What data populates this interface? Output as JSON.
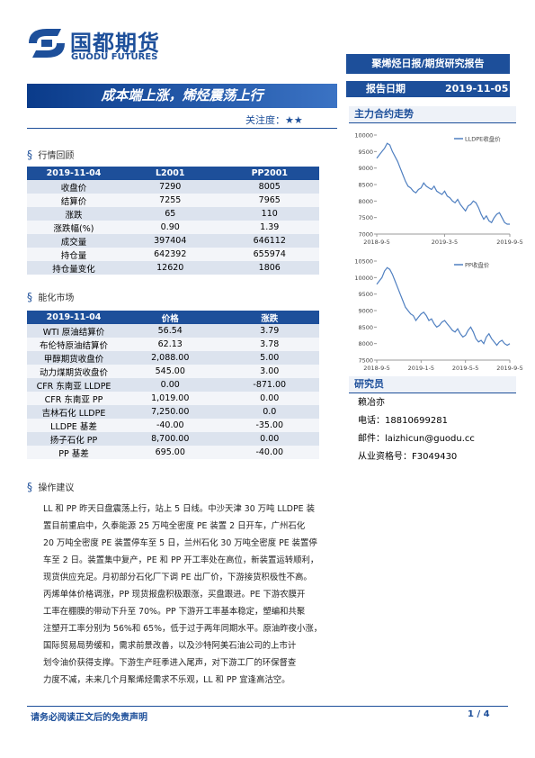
{
  "header": {
    "logo_cn": "国都期货",
    "logo_en": "GUODU FUTURES",
    "banner": "聚烯烃日报/期货研究报告",
    "title": "成本端上涨，烯烃震荡上行",
    "attention_label": "关注度：",
    "attention": "★★",
    "date_label": "报告日期",
    "date": "2019-11-05"
  },
  "market_review": {
    "title": "行情回顾",
    "table": {
      "header": [
        "2019-11-04",
        "L2001",
        "PP2001"
      ],
      "rows": [
        [
          "收盘价",
          "7290",
          "8005"
        ],
        [
          "结算价",
          "7255",
          "7965"
        ],
        [
          "涨跌",
          "65",
          "110"
        ],
        [
          "涨跌幅(%)",
          "0.90",
          "1.39"
        ],
        [
          "成交量",
          "397404",
          "646112"
        ],
        [
          "持仓量",
          "642392",
          "655974"
        ],
        [
          "持仓量变化",
          "12620",
          "1806"
        ]
      ]
    }
  },
  "chem_market": {
    "title": "能化市场",
    "table": {
      "header": [
        "2019-11-04",
        "价格",
        "涨跌"
      ],
      "rows": [
        [
          "WTI 原油结算价",
          "56.54",
          "3.79"
        ],
        [
          "布伦特原油结算价",
          "62.13",
          "3.78"
        ],
        [
          "甲醇期货收盘价",
          "2,088.00",
          "5.00"
        ],
        [
          "动力煤期货收盘价",
          "545.00",
          "3.00"
        ],
        [
          "CFR 东南亚 LLDPE",
          "0.00",
          "-871.00"
        ],
        [
          "CFR 东南亚 PP",
          "1,019.00",
          "0.00"
        ],
        [
          "吉林石化 LLDPE",
          "7,250.00",
          "0.0"
        ],
        [
          "LLDPE 基差",
          "-40.00",
          "-35.00"
        ],
        [
          "扬子石化 PP",
          "8,700.00",
          "0.00"
        ],
        [
          "PP 基差",
          "695.00",
          "-40.00"
        ]
      ]
    }
  },
  "advice": {
    "title": "操作建议",
    "lines": [
      "LL 和 PP 昨天日盘震荡上行，站上 5 日线。中沙天津 30 万吨 LLDPE 装",
      "置目前重启中，久泰能源 25 万吨全密度 PE 装置 2 日开车，广州石化",
      "20 万吨全密度 PE 装置停车至 5 日，兰州石化 30 万吨全密度 PE 装置停",
      "车至 2 日。装置集中复产，PE 和 PP 开工率处在高位，新装置运转顺利，",
      "现货供应充足。月初部分石化厂下调 PE 出厂价，下游接货积极性不高。",
      "丙烯单体价格调涨，PP 现货报盘积极跟涨，买盘跟进。PE 下游农膜开",
      "工率在棚膜的带动下升至 70%。PP 下游开工率基本稳定，塑编和共聚",
      "注塑开工率分别为 56%和 65%，低于过于两年同期水平。原油昨夜小涨，",
      "国际贸易局势缓和，需求前景改善，以及沙特阿美石油公司的上市计",
      "划令油价获得支撑。下游生产旺季进入尾声，对下游工厂的环保督查",
      "力度不减，未来几个月聚烯烃需求不乐观，LL 和 PP 宜逢高沽空。"
    ]
  },
  "chart_heading": "主力合约走势",
  "charts": [
    {
      "type": "line",
      "series": [
        {
          "name": "LLDPE收盘价",
          "color": "#4f7fc0",
          "values": [
            9300,
            9400,
            9500,
            9600,
            9750,
            9700,
            9500,
            9350,
            9200,
            9000,
            8800,
            8600,
            8450,
            8400,
            8300,
            8250,
            8350,
            8400,
            8550,
            8450,
            8400,
            8350,
            8450,
            8300,
            8250,
            8200,
            8300,
            8150,
            8100,
            8000,
            7950,
            8050,
            7900,
            7800,
            7700,
            7850,
            7900,
            8000,
            7950,
            7800,
            7600,
            7450,
            7550,
            7400,
            7350,
            7500,
            7600,
            7650,
            7500,
            7350,
            7300,
            7300
          ]
        }
      ],
      "ylim": [
        7000,
        10000
      ],
      "yticks": [
        7000,
        7500,
        8000,
        8500,
        9000,
        9500,
        10000
      ],
      "xticks": [
        {
          "value": 0,
          "label": "2018-9-5"
        },
        {
          "value": 26,
          "label": "2019-3-5"
        },
        {
          "value": 51,
          "label": "2019-9-5"
        }
      ]
    },
    {
      "type": "line",
      "series": [
        {
          "name": "PP收盘价",
          "color": "#4f7fc0",
          "values": [
            9800,
            9900,
            10000,
            10200,
            10300,
            10250,
            10100,
            9900,
            9700,
            9500,
            9300,
            9100,
            9000,
            8900,
            8850,
            8700,
            8800,
            8900,
            8950,
            8850,
            8700,
            8750,
            8600,
            8500,
            8550,
            8650,
            8700,
            8600,
            8500,
            8400,
            8350,
            8450,
            8300,
            8200,
            8250,
            8400,
            8500,
            8350,
            8150,
            8050,
            8100,
            8000,
            8200,
            8300,
            8150,
            8050,
            7950,
            8050,
            8100,
            8000,
            7950,
            8000
          ]
        }
      ],
      "ylim": [
        7500,
        10500
      ],
      "yticks": [
        7500,
        8000,
        8500,
        9000,
        9500,
        10000,
        10500
      ],
      "xticks": [
        {
          "value": 0,
          "label": "2018-9-5"
        },
        {
          "value": 17,
          "label": "2019-1-5"
        },
        {
          "value": 34,
          "label": "2019-5-5"
        },
        {
          "value": 51,
          "label": "2019-9-5"
        }
      ]
    }
  ],
  "researcher": {
    "title": "研究员",
    "name": "赖冶亦",
    "phone": "电话：18810699281",
    "email": "邮件：laizhicun@guodu.cc",
    "license": "从业资格号：F3049430"
  },
  "footer": {
    "disclaimer": "请务必阅读正文后的免责声明",
    "page": "1 / 4"
  }
}
